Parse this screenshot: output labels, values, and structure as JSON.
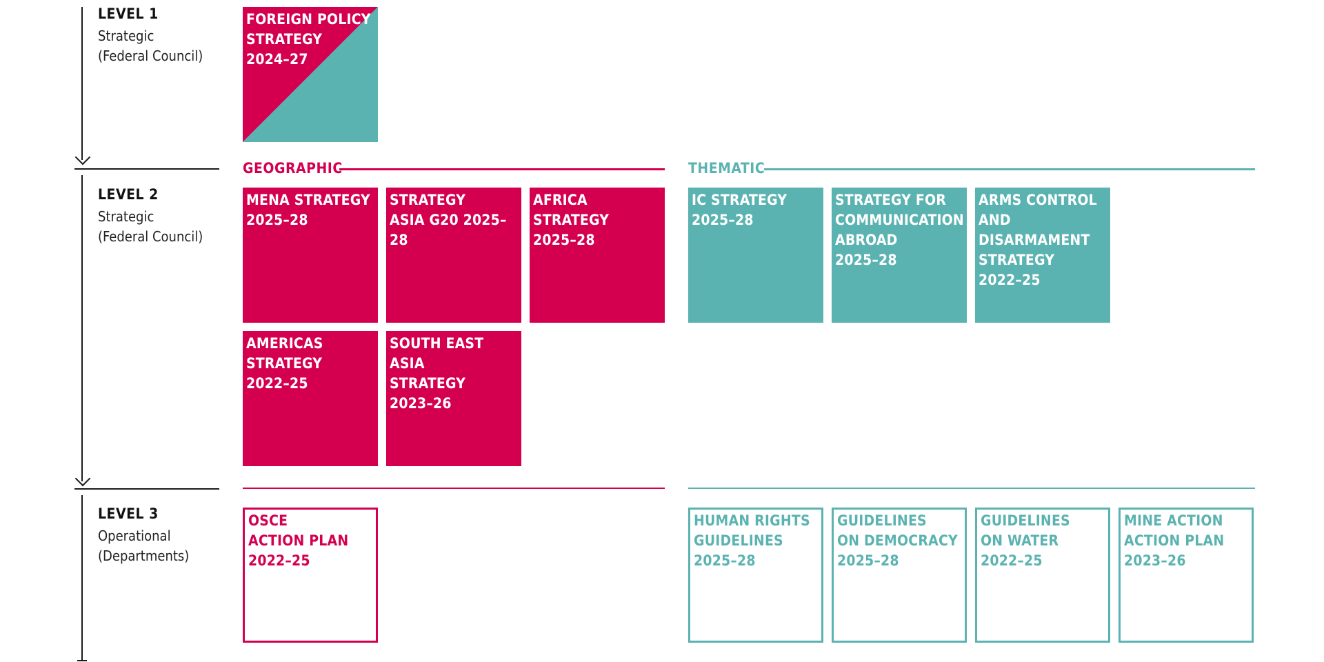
{
  "colors": {
    "geographic": "#d4004f",
    "thematic": "#5bb3b1",
    "axis": "#1a1a1a"
  },
  "levels": [
    {
      "title": "LEVEL 1",
      "subtitle": "Strategic\n(Federal Council)"
    },
    {
      "title": "LEVEL 2",
      "subtitle": "Strategic\n(Federal Council)"
    },
    {
      "title": "LEVEL 3",
      "subtitle": "Operational\n(Departments)"
    }
  ],
  "sections": {
    "geographic": "GEOGRAPHIC",
    "thematic": "THEMATIC"
  },
  "level1": {
    "foreign_policy": "FOREIGN POLICY\nSTRATEGY\n2024–27"
  },
  "level2": {
    "geographic": [
      "MENA STRATEGY\n2025–28",
      "STRATEGY\nASIA G20 2025–28",
      "AFRICA STRATEGY\n2025–28",
      "AMERICAS\nSTRATEGY\n2022–25",
      "SOUTH EAST ASIA\nSTRATEGY\n2023–26"
    ],
    "thematic": [
      "IC STRATEGY\n2025–28",
      "STRATEGY FOR\nCOMMUNICATION\nABROAD\n2025–28",
      "ARMS CONTROL\nAND\nDISARMAMENT\nSTRATEGY\n2022–25"
    ]
  },
  "level3": {
    "geographic": [
      "OSCE\nACTION PLAN\n2022–25"
    ],
    "thematic": [
      "HUMAN RIGHTS\nGUIDELINES\n2025–28",
      "GUIDELINES\nON DEMOCRACY\n2025–28",
      "GUIDELINES\nON WATER\n2022–25",
      "MINE ACTION\nACTION PLAN\n2023–26"
    ]
  }
}
